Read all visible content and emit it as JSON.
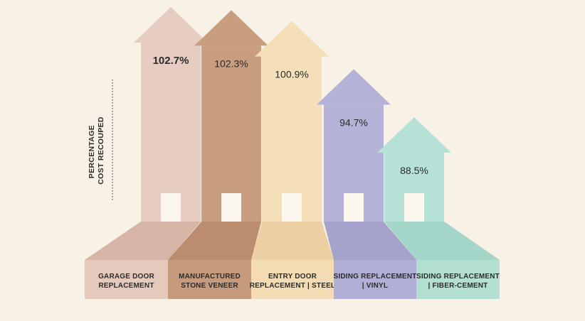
{
  "chart_data": {
    "type": "bar",
    "ylabel": [
      "PERCENTAGE",
      "COST RECOUPED"
    ],
    "ylim": [
      0,
      102.7
    ],
    "categories": [
      [
        "GARAGE DOOR",
        "REPLACEMENT"
      ],
      [
        "MANUFACTURED",
        "STONE VENEER"
      ],
      [
        "ENTRY DOOR",
        "REPLACEMENT | STEEL"
      ],
      [
        "SIDING REPLACEMENT",
        "| VINYL"
      ],
      [
        "SIDING REPLACEMENT",
        "| FIBER-CEMENT"
      ]
    ],
    "values": [
      102.7,
      102.3,
      100.9,
      94.7,
      88.5
    ],
    "value_labels": [
      "102.7%",
      "102.3%",
      "100.9%",
      "94.7%",
      "88.5%"
    ],
    "colors": [
      {
        "body": "#e7cdc1",
        "base": "#d6b4a6",
        "label": "#e5c9bc"
      },
      {
        "body": "#c99d80",
        "base": "#bc8c6e",
        "label": "#c69a7c"
      },
      {
        "body": "#f5dfb8",
        "base": "#ecd0a4",
        "label": "#f3dcb4"
      },
      {
        "body": "#b5b2d8",
        "base": "#a5a2cc",
        "label": "#b2afd6"
      },
      {
        "body": "#b6e1d6",
        "base": "#a3d6c9",
        "label": "#b4e0d4"
      }
    ]
  }
}
